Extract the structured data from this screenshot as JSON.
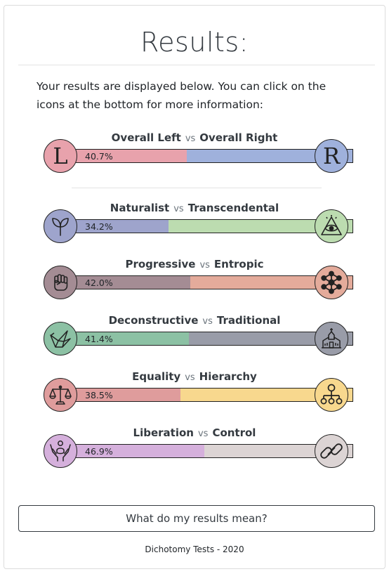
{
  "page": {
    "title": "Results:",
    "intro": "Your results are displayed below. You can click on the icons at the bottom for more information:",
    "button_label": "What do my results mean?",
    "footer": "Dichotomy Tests - 2020"
  },
  "axes": [
    {
      "left": "Overall Left",
      "vs": "vs",
      "right": "Overall Right",
      "left_pct": "40.7%",
      "right_pct": "59.3%",
      "left_value": 40.7,
      "left_color": "#e8a2ac",
      "right_color": "#9fb1dc",
      "left_icon": "letter-l-icon",
      "right_icon": "letter-r-icon",
      "left_glyph": "L",
      "right_glyph": "R"
    },
    {
      "left": "Naturalist",
      "vs": "vs",
      "right": "Transcendental",
      "left_pct": "34.2%",
      "right_pct": "65.8%",
      "left_value": 34.2,
      "left_color": "#9ea4cc",
      "right_color": "#bcdcb0",
      "left_icon": "leaf-icon",
      "right_icon": "eye-pyramid-icon"
    },
    {
      "left": "Progressive",
      "vs": "vs",
      "right": "Entropic",
      "left_pct": "42.0%",
      "right_pct": "58.0%",
      "left_value": 42.0,
      "left_color": "#a48c94",
      "right_color": "#e4ab9b",
      "left_icon": "fist-icon",
      "right_icon": "molecule-icon"
    },
    {
      "left": "Deconstructive",
      "vs": "vs",
      "right": "Traditional",
      "left_pct": "41.4%",
      "right_pct": "58.6%",
      "left_value": 41.4,
      "left_color": "#8cc1a4",
      "right_color": "#999ca8",
      "left_icon": "bird-icon",
      "right_icon": "church-icon"
    },
    {
      "left": "Equality",
      "vs": "vs",
      "right": "Hierarchy",
      "left_pct": "38.5%",
      "right_pct": "61.5%",
      "left_value": 38.5,
      "left_color": "#df9c9c",
      "right_color": "#f8d88e",
      "left_icon": "scales-icon",
      "right_icon": "hierarchy-icon"
    },
    {
      "left": "Liberation",
      "vs": "vs",
      "right": "Control",
      "left_pct": "46.9%",
      "right_pct": "53.1%",
      "left_value": 46.9,
      "left_color": "#d5b0dc",
      "right_color": "#dcd4d4",
      "left_icon": "raised-hands-icon",
      "right_icon": "chain-icon"
    }
  ]
}
